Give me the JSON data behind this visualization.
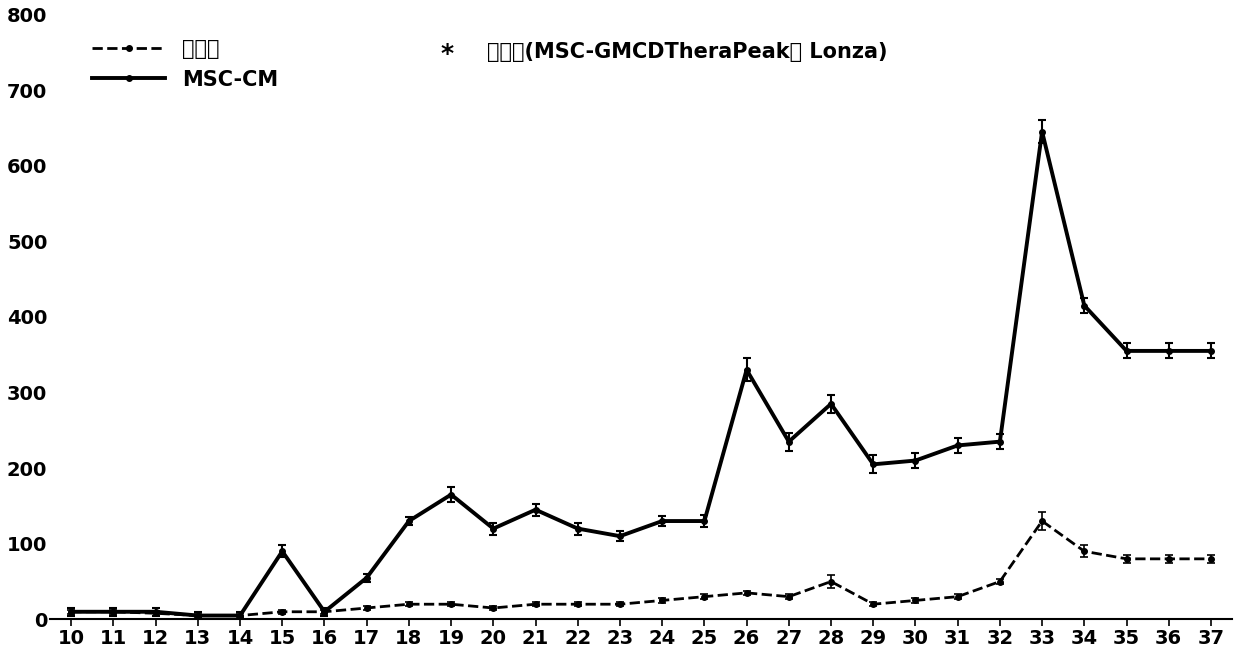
{
  "x": [
    10,
    11,
    12,
    13,
    14,
    15,
    16,
    17,
    18,
    19,
    20,
    21,
    22,
    23,
    24,
    25,
    26,
    27,
    28,
    29,
    30,
    31,
    32,
    33,
    34,
    35,
    36,
    37
  ],
  "msc_cm": [
    10,
    10,
    10,
    5,
    5,
    90,
    10,
    55,
    130,
    165,
    120,
    145,
    120,
    110,
    130,
    130,
    330,
    235,
    285,
    205,
    210,
    230,
    235,
    645,
    415,
    355,
    355,
    355
  ],
  "msc_cm_err": [
    5,
    5,
    5,
    5,
    5,
    8,
    5,
    5,
    5,
    10,
    8,
    8,
    8,
    7,
    7,
    8,
    15,
    12,
    12,
    12,
    10,
    10,
    10,
    15,
    10,
    10,
    10,
    10
  ],
  "control": [
    10,
    10,
    8,
    5,
    5,
    10,
    10,
    15,
    20,
    20,
    15,
    20,
    20,
    20,
    25,
    30,
    35,
    30,
    50,
    20,
    25,
    30,
    50,
    130,
    90,
    80,
    80,
    80
  ],
  "control_err": [
    3,
    3,
    3,
    3,
    3,
    3,
    3,
    3,
    3,
    3,
    3,
    3,
    3,
    3,
    3,
    3,
    3,
    3,
    8,
    3,
    3,
    3,
    3,
    12,
    8,
    5,
    5,
    5
  ],
  "ylim": [
    0,
    800
  ],
  "yticks": [
    0,
    100,
    200,
    300,
    400,
    500,
    600,
    700,
    800
  ],
  "legend_label_control": "对照组",
  "legend_label_msc": "MSC-CM",
  "annotation_star": "*",
  "annotation_text": "培养基(MSC-GMCDTheraPeak， Lonza)",
  "line_color": "#000000",
  "bg_color": "#ffffff"
}
